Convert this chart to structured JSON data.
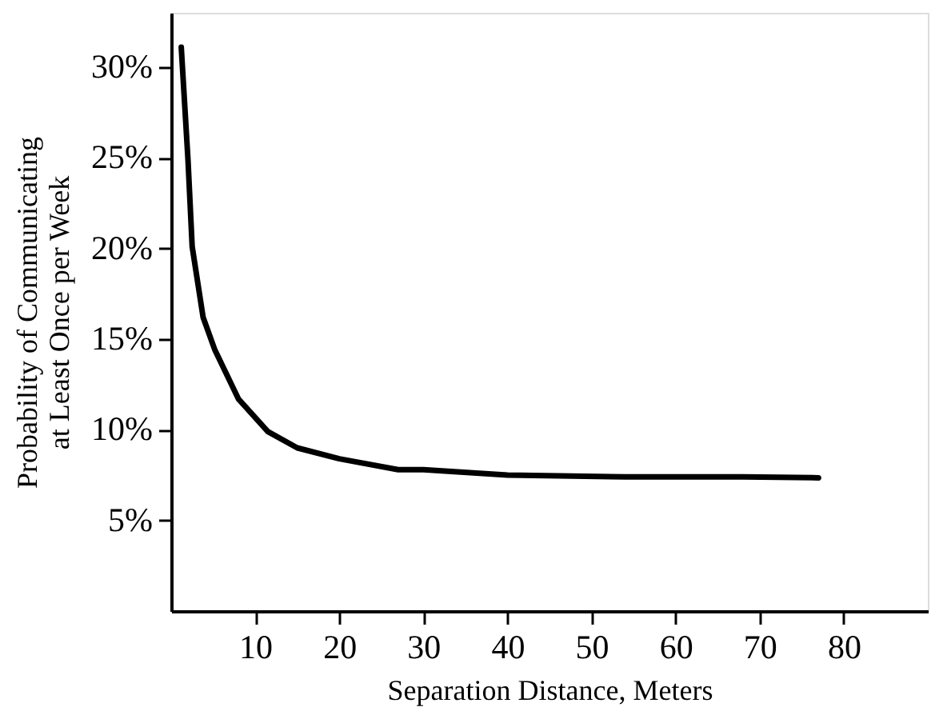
{
  "chart_data": {
    "type": "line",
    "xlabel": "Separation Distance, Meters",
    "ylabel": "Probability of Communicating at Least Once per Week",
    "x": [
      1.2,
      2.0,
      2.5,
      3.8,
      5.2,
      8.0,
      11.5,
      15,
      20,
      27,
      30,
      40,
      54,
      68,
      77
    ],
    "series": [
      {
        "color": "#000000",
        "values": [
          31.1,
          24.9,
          20.1,
          16.2,
          14.4,
          11.7,
          9.9,
          9.0,
          8.4,
          7.8,
          7.8,
          7.5,
          7.4,
          7.4,
          7.35
        ]
      }
    ],
    "xlim": [
      0,
      90
    ],
    "xticks": [
      10,
      20,
      30,
      40,
      50,
      60,
      70,
      80
    ],
    "ylim": [
      0,
      33
    ],
    "yticks": [
      {
        "value": 5,
        "label": "5%"
      },
      {
        "value": 10,
        "label": "10%"
      },
      {
        "value": 15,
        "label": "15%"
      },
      {
        "value": 20,
        "label": "20%"
      },
      {
        "value": 25,
        "label": "25%"
      },
      {
        "value": 30,
        "label": "30%"
      }
    ],
    "grid": false,
    "line_style": "solid",
    "marker": "none",
    "legend": false
  }
}
